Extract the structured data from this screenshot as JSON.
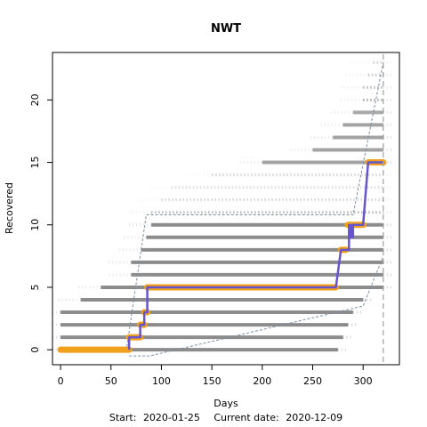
{
  "chart_data": {
    "type": "scatter",
    "title": "NWT",
    "xlabel": "Days",
    "ylabel": "Recovered",
    "xlim": [
      -8,
      336
    ],
    "ylim": [
      -1.2,
      23.8
    ],
    "x_ticks": [
      0,
      50,
      100,
      150,
      200,
      250,
      300
    ],
    "y_ticks": [
      0,
      5,
      10,
      15,
      20
    ],
    "grid": false,
    "legend": "none",
    "current_day_line": 320,
    "footer": {
      "start_label": "Start:",
      "start_date": "2020-01-25",
      "current_label": "Current date:",
      "current_date": "2020-12-09"
    },
    "colors": {
      "observed": "#f0a01a",
      "fitted": "#6655cc",
      "simulations": "#808080",
      "bounds": "#7a8fa6",
      "current_line": "#a0a0a0"
    },
    "simulation_bands": [
      {
        "y": 0,
        "x_start": 0,
        "x_end": 275,
        "weight": 1.0
      },
      {
        "y": 1,
        "x_start": 0,
        "x_end": 280,
        "weight": 1.0
      },
      {
        "y": 2,
        "x_start": 0,
        "x_end": 285,
        "weight": 1.0
      },
      {
        "y": 3,
        "x_start": 0,
        "x_end": 290,
        "weight": 1.0
      },
      {
        "y": 4,
        "x_start": 20,
        "x_end": 300,
        "weight": 1.0
      },
      {
        "y": 5,
        "x_start": 40,
        "x_end": 320,
        "weight": 1.0
      },
      {
        "y": 6,
        "x_start": 70,
        "x_end": 320,
        "weight": 1.0
      },
      {
        "y": 7,
        "x_start": 70,
        "x_end": 320,
        "weight": 1.0
      },
      {
        "y": 8,
        "x_start": 80,
        "x_end": 320,
        "weight": 1.0
      },
      {
        "y": 9,
        "x_start": 85,
        "x_end": 320,
        "weight": 1.0
      },
      {
        "y": 10,
        "x_start": 90,
        "x_end": 320,
        "weight": 1.0
      },
      {
        "y": 11,
        "x_start": 90,
        "x_end": 320,
        "weight": 0.6
      },
      {
        "y": 12,
        "x_start": 100,
        "x_end": 320,
        "weight": 0.35
      },
      {
        "y": 13,
        "x_start": 110,
        "x_end": 320,
        "weight": 0.3
      },
      {
        "y": 14,
        "x_start": 150,
        "x_end": 320,
        "weight": 0.35
      },
      {
        "y": 15,
        "x_start": 200,
        "x_end": 320,
        "weight": 0.8
      },
      {
        "y": 16,
        "x_start": 250,
        "x_end": 320,
        "weight": 0.8
      },
      {
        "y": 17,
        "x_start": 270,
        "x_end": 320,
        "weight": 0.8
      },
      {
        "y": 18,
        "x_start": 280,
        "x_end": 320,
        "weight": 0.8
      },
      {
        "y": 19,
        "x_start": 290,
        "x_end": 320,
        "weight": 0.75
      },
      {
        "y": 20,
        "x_start": 300,
        "x_end": 320,
        "weight": 0.7
      },
      {
        "y": 21,
        "x_start": 300,
        "x_end": 320,
        "weight": 0.6
      },
      {
        "y": 22,
        "x_start": 305,
        "x_end": 320,
        "weight": 0.5
      },
      {
        "y": 23,
        "x_start": 310,
        "x_end": 320,
        "weight": 0.4
      }
    ],
    "observed_segments": [
      {
        "y": 0,
        "x_start": 0,
        "x_end": 68
      },
      {
        "y": 1,
        "x_start": 68,
        "x_end": 79
      },
      {
        "y": 2,
        "x_start": 79,
        "x_end": 83
      },
      {
        "y": 3,
        "x_start": 83,
        "x_end": 86
      },
      {
        "y": 5,
        "x_start": 86,
        "x_end": 273
      },
      {
        "y": 8,
        "x_start": 278,
        "x_end": 283
      },
      {
        "y": 10,
        "x_start": 285,
        "x_end": 300
      },
      {
        "y": 15,
        "x_start": 305,
        "x_end": 320
      }
    ],
    "fitted_series": {
      "x": [
        68,
        68,
        79,
        79,
        83,
        83,
        86,
        86,
        273,
        273,
        278,
        278,
        283,
        286,
        286,
        288,
        288,
        290,
        290,
        300,
        300,
        305,
        305,
        320
      ],
      "y": [
        0,
        1,
        1,
        2,
        2,
        3,
        3,
        5,
        5,
        5,
        8,
        8,
        8,
        8,
        10,
        9,
        10,
        9,
        10,
        10,
        10,
        15,
        15,
        15
      ]
    },
    "bound_lines": [
      {
        "x": [
          0,
          65,
          85,
          290,
          320
        ],
        "y": [
          -0.2,
          -0.2,
          10.8,
          10.8,
          23
        ]
      },
      {
        "x": [
          68,
          88,
          300,
          320
        ],
        "y": [
          -0.5,
          -0.5,
          3.5,
          7.5
        ]
      }
    ]
  }
}
